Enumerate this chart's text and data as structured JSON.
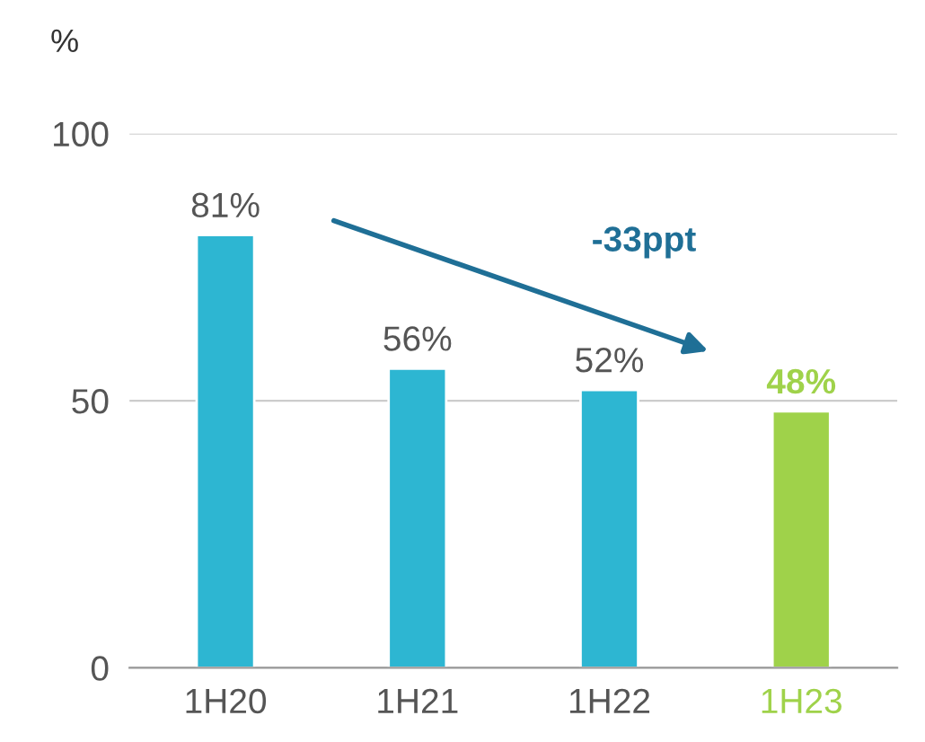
{
  "chart_data": {
    "type": "bar",
    "ylabel": "%",
    "categories": [
      "1H20",
      "1H21",
      "1H22",
      "1H23"
    ],
    "values": [
      81,
      56,
      52,
      48
    ],
    "colors": [
      "#2db6d2",
      "#2db6d2",
      "#2db6d2",
      "#9fd24a"
    ],
    "value_labels": [
      "81%",
      "56%",
      "52%",
      "48%"
    ],
    "ylim": [
      0,
      100
    ],
    "yticks": [
      0,
      50,
      100
    ],
    "grid": "y",
    "annotations": [
      "-33ppt"
    ]
  }
}
